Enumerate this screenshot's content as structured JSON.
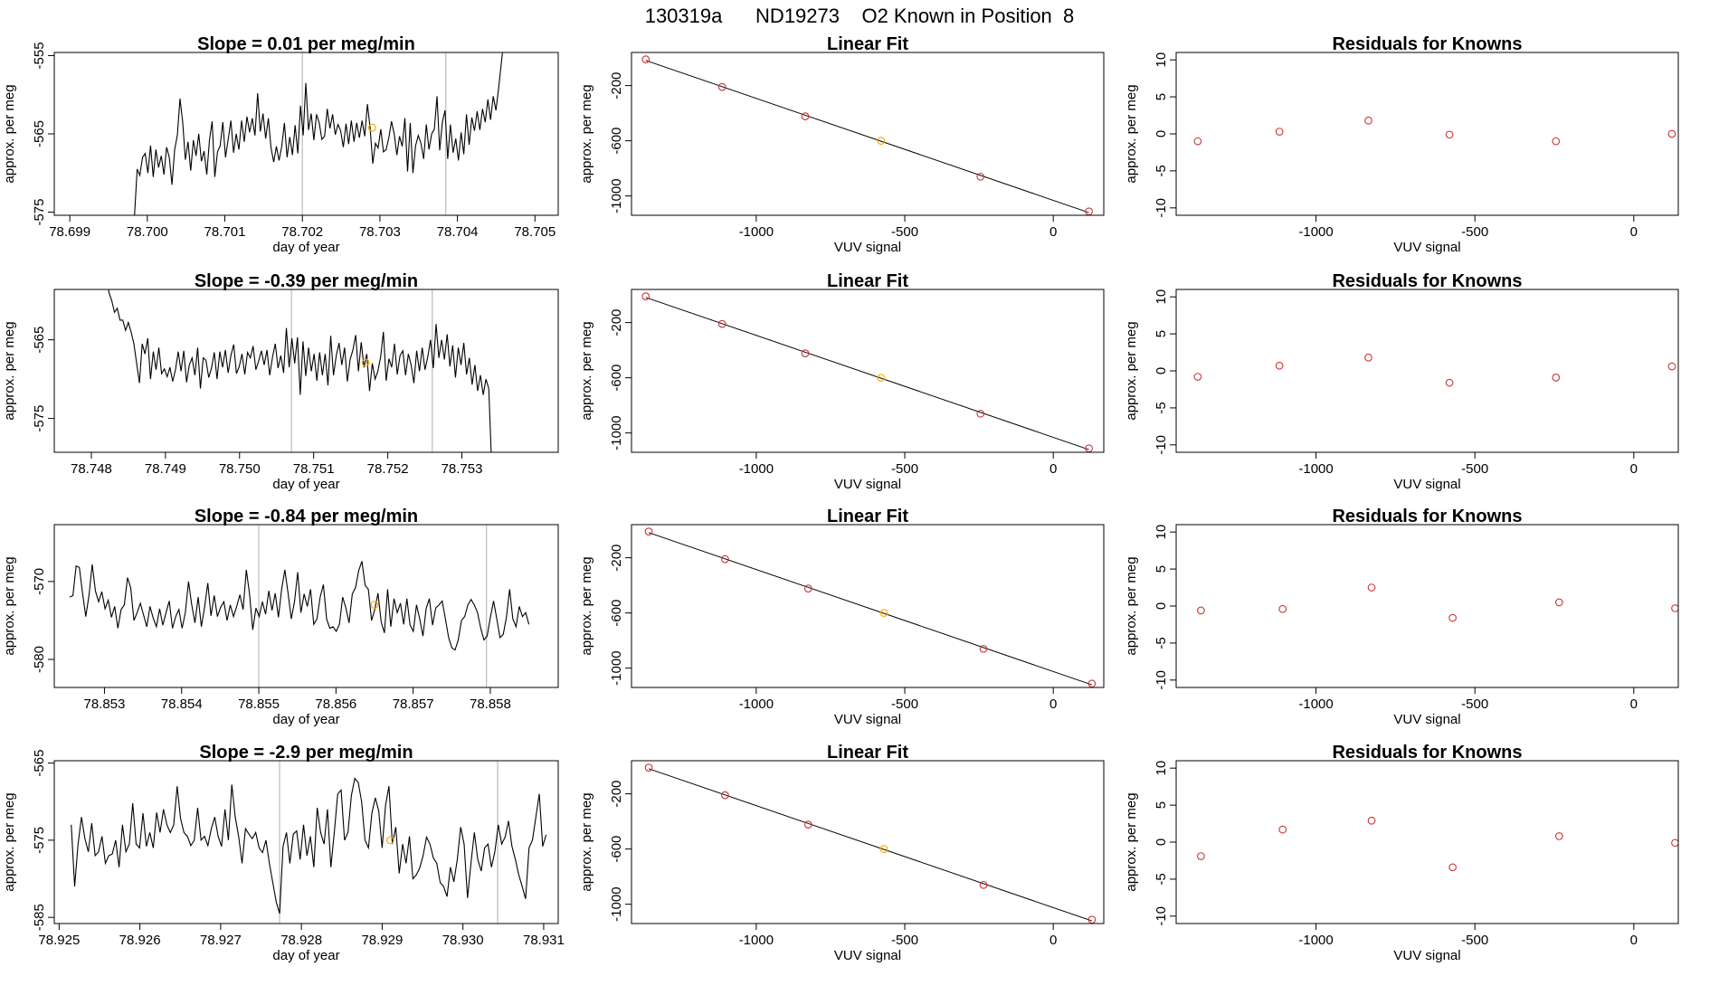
{
  "figure": {
    "run_id": "130319a",
    "tank_id": "ND19273",
    "description": "O2 Known in Position",
    "position": "8"
  },
  "colors": {
    "line": "#000000",
    "point": "#cc3333",
    "highlight": "#ffaa00",
    "vline": "#bbbbbb",
    "axis": "#000000"
  },
  "chart_data": [
    {
      "type": "line",
      "title_prefix": "Slope =",
      "slope": "0.01",
      "title_suffix": "per meg/min",
      "xlabel": "day of year",
      "ylabel": "approx. per meg",
      "xlim": [
        78.6988,
        78.7053
      ],
      "ylim": [
        -575.4,
        -554.6
      ],
      "xticks": [
        "78.699",
        "78.700",
        "78.701",
        "78.702",
        "78.703",
        "78.704",
        "78.705"
      ],
      "yticks": [
        "-575",
        "-565",
        "-555"
      ],
      "vlines": [
        78.702,
        78.70385
      ],
      "highlight": {
        "x": 78.7029,
        "y": -564.2
      },
      "t_start": 78.6998,
      "t_end": 78.7046,
      "series": [
        -576.5,
        -575.5,
        -569.5,
        -570.3,
        -568.0,
        -567.5,
        -570.0,
        -566.5,
        -570.5,
        -567.0,
        -569.3,
        -567.8,
        -570.2,
        -566.7,
        -568.0,
        -571.5,
        -567.0,
        -565.2,
        -560.5,
        -563.5,
        -568.3,
        -566.0,
        -569.7,
        -565.8,
        -567.8,
        -565.0,
        -568.5,
        -567.2,
        -570.2,
        -565.8,
        -563.4,
        -570.5,
        -567.3,
        -566.5,
        -563.5,
        -568.0,
        -565.7,
        -563.3,
        -567.4,
        -565.0,
        -567.0,
        -563.3,
        -566.0,
        -562.8,
        -564.8,
        -563.0,
        -565.2,
        -559.8,
        -564.7,
        -562.4,
        -565.6,
        -563.0,
        -566.8,
        -568.6,
        -566.6,
        -568.4,
        -566.6,
        -563.6,
        -568.0,
        -565.4,
        -567.7,
        -563.9,
        -567.5,
        -561.4,
        -565.2,
        -558.5,
        -564.5,
        -562.4,
        -565.8,
        -562.5,
        -563.6,
        -565.7,
        -565.3,
        -561.8,
        -564.3,
        -562.5,
        -565.1,
        -563.8,
        -564.6,
        -566.7,
        -563.7,
        -566.3,
        -563.3,
        -566.0,
        -563.6,
        -565.5,
        -563.3,
        -565.3,
        -561.2,
        -564.2,
        -568.8,
        -566.2,
        -566.8,
        -564.4,
        -567.3,
        -567.0,
        -565.5,
        -563.4,
        -565.0,
        -567.7,
        -565.3,
        -566.6,
        -563.0,
        -569.8,
        -563.6,
        -570.0,
        -566.5,
        -565.2,
        -566.2,
        -568.2,
        -563.8,
        -567.0,
        -565.0,
        -564.4,
        -560.2,
        -567.1,
        -563.5,
        -562.0,
        -568.2,
        -563.8,
        -567.4,
        -565.6,
        -568.4,
        -564.8,
        -567.6,
        -562.5,
        -566.4,
        -562.9,
        -564.6,
        -562.1,
        -564.5,
        -561.8,
        -563.5,
        -560.6,
        -563.2,
        -560.2,
        -562.0,
        -559.2,
        -556.0,
        -553.0
      ]
    },
    {
      "type": "line",
      "title_prefix": "Slope =",
      "slope": "-0.39",
      "title_suffix": "per meg/min",
      "xlabel": "day of year",
      "ylabel": "approx. per meg",
      "xlim": [
        78.7475,
        78.7543
      ],
      "ylim": [
        -579.3,
        -558.6
      ],
      "xticks": [
        "78.748",
        "78.749",
        "78.750",
        "78.751",
        "78.752",
        "78.753"
      ],
      "yticks": [
        "-575",
        "-565"
      ],
      "vlines": [
        78.7507,
        78.7526
      ],
      "highlight": {
        "x": 78.7517,
        "y": -567.9
      },
      "t_start": 78.7482,
      "t_end": 78.7534,
      "series": [
        -556.0,
        -559.0,
        -560.0,
        -561.5,
        -561.0,
        -562.5,
        -562.5,
        -563.8,
        -562.8,
        -564.0,
        -565.5,
        -568.0,
        -570.5,
        -565.5,
        -566.8,
        -564.8,
        -570.0,
        -566.5,
        -568.8,
        -566.0,
        -569.3,
        -568.7,
        -569.7,
        -568.5,
        -570.3,
        -568.8,
        -566.5,
        -569.0,
        -566.4,
        -570.4,
        -568.2,
        -567.3,
        -569.5,
        -566.0,
        -571.2,
        -567.3,
        -567.6,
        -569.8,
        -568.6,
        -566.6,
        -570.0,
        -566.5,
        -568.5,
        -566.3,
        -569.2,
        -567.0,
        -565.6,
        -569.3,
        -568.4,
        -566.8,
        -569.4,
        -566.6,
        -567.3,
        -565.8,
        -568.8,
        -567.7,
        -566.4,
        -568.2,
        -566.3,
        -569.5,
        -567.2,
        -565.5,
        -568.6,
        -567.0,
        -569.2,
        -563.5,
        -568.5,
        -564.8,
        -568.0,
        -564.7,
        -572.0,
        -565.2,
        -569.6,
        -566.0,
        -569.0,
        -566.8,
        -570.2,
        -566.6,
        -569.5,
        -566.8,
        -570.8,
        -564.5,
        -569.5,
        -567.0,
        -565.4,
        -568.2,
        -566.0,
        -570.3,
        -567.5,
        -566.3,
        -564.4,
        -569.0,
        -565.3,
        -568.5,
        -566.8,
        -571.5,
        -568.0,
        -570.0,
        -569.0,
        -567.2,
        -564.0,
        -570.2,
        -567.4,
        -568.5,
        -565.5,
        -569.4,
        -567.0,
        -566.4,
        -569.5,
        -566.8,
        -568.2,
        -570.5,
        -566.4,
        -569.0,
        -566.0,
        -568.8,
        -567.2,
        -565.0,
        -568.6,
        -563.0,
        -567.3,
        -565.0,
        -567.5,
        -564.3,
        -568.4,
        -565.7,
        -569.8,
        -566.0,
        -568.2,
        -565.4,
        -569.4,
        -567.3,
        -570.7,
        -568.2,
        -571.5,
        -569.5,
        -572.0,
        -570.0,
        -571.2,
        -580.5
      ]
    },
    {
      "type": "line",
      "title_prefix": "Slope =",
      "slope": "-0.84",
      "title_suffix": "per meg/min",
      "xlabel": "day of year",
      "ylabel": "approx. per meg",
      "xlim": [
        78.85235,
        78.85888
      ],
      "ylim": [
        -583.6,
        -562.7
      ],
      "xticks": [
        "78.853",
        "78.854",
        "78.855",
        "78.856",
        "78.857",
        "78.858"
      ],
      "yticks": [
        "-580",
        "-570"
      ],
      "vlines": [
        78.855,
        78.85795
      ],
      "highlight": {
        "x": 78.8565,
        "y": -573.0
      },
      "t_start": 78.85255,
      "t_end": 78.8585,
      "series": [
        -572.0,
        -571.8,
        -568.0,
        -568.2,
        -571.5,
        -574.5,
        -571.8,
        -567.8,
        -571.2,
        -572.6,
        -571.3,
        -573.5,
        -572.4,
        -574.6,
        -573.2,
        -576.0,
        -573.6,
        -573.0,
        -569.5,
        -570.8,
        -575.0,
        -574.0,
        -572.8,
        -574.3,
        -575.8,
        -573.2,
        -574.7,
        -575.8,
        -573.5,
        -575.6,
        -574.0,
        -572.5,
        -576.0,
        -574.5,
        -573.6,
        -576.0,
        -574.0,
        -570.0,
        -573.0,
        -575.3,
        -572.0,
        -575.8,
        -573.3,
        -570.2,
        -574.4,
        -571.8,
        -574.5,
        -573.3,
        -572.6,
        -575.0,
        -573.0,
        -574.5,
        -573.2,
        -571.7,
        -573.6,
        -568.5,
        -571.6,
        -576.2,
        -573.4,
        -574.5,
        -572.6,
        -574.2,
        -571.2,
        -573.7,
        -571.5,
        -574.6,
        -571.0,
        -568.5,
        -571.5,
        -574.8,
        -572.6,
        -568.8,
        -574.0,
        -571.6,
        -573.2,
        -571.0,
        -575.5,
        -574.8,
        -572.0,
        -570.4,
        -574.8,
        -576.0,
        -575.8,
        -576.4,
        -575.5,
        -572.0,
        -573.4,
        -575.3,
        -571.6,
        -570.8,
        -568.6,
        -567.4,
        -570.5,
        -571.0,
        -575.0,
        -573.6,
        -571.5,
        -575.2,
        -576.6,
        -571.0,
        -575.8,
        -572.2,
        -574.0,
        -572.8,
        -575.5,
        -572.2,
        -575.6,
        -576.4,
        -573.0,
        -574.8,
        -577.0,
        -573.5,
        -572.2,
        -575.6,
        -573.4,
        -573.0,
        -572.5,
        -574.8,
        -577.2,
        -578.5,
        -578.8,
        -577.5,
        -575.0,
        -574.5,
        -573.0,
        -572.3,
        -573.0,
        -574.0,
        -576.0,
        -577.5,
        -577.0,
        -574.6,
        -572.5,
        -574.8,
        -577.2,
        -576.8,
        -574.6,
        -571.0,
        -574.8,
        -575.8,
        -573.2,
        -574.5,
        -574.0,
        -575.5
      ]
    },
    {
      "type": "line",
      "title_prefix": "Slope =",
      "slope": "-2.9",
      "title_suffix": "per meg/min",
      "xlabel": "day of year",
      "ylabel": "approx. per meg",
      "xlim": [
        78.92494,
        78.93118
      ],
      "ylim": [
        -585.8,
        -564.7
      ],
      "xticks": [
        "78.925",
        "78.926",
        "78.927",
        "78.928",
        "78.929",
        "78.930",
        "78.931"
      ],
      "yticks": [
        "-585",
        "-575",
        "-565"
      ],
      "vlines": [
        78.92773,
        78.93043
      ],
      "highlight": {
        "x": 78.9291,
        "y": -575.0
      },
      "t_start": 78.92515,
      "t_end": 78.93103,
      "series": [
        -573.0,
        -581.0,
        -575.5,
        -572.0,
        -574.8,
        -576.5,
        -572.8,
        -577.0,
        -576.5,
        -574.5,
        -578.0,
        -577.0,
        -576.8,
        -575.0,
        -578.5,
        -573.0,
        -576.5,
        -575.5,
        -570.2,
        -575.5,
        -576.0,
        -571.5,
        -575.8,
        -574.0,
        -576.0,
        -571.4,
        -574.0,
        -571.0,
        -573.0,
        -574.0,
        -573.0,
        -568.0,
        -572.2,
        -574.0,
        -574.5,
        -575.7,
        -575.0,
        -570.8,
        -575.0,
        -574.5,
        -575.7,
        -573.5,
        -572.0,
        -574.5,
        -575.8,
        -571.0,
        -575.0,
        -567.8,
        -572.0,
        -574.5,
        -578.0,
        -573.5,
        -574.2,
        -574.8,
        -574.0,
        -576.0,
        -576.6,
        -575.0,
        -578.0,
        -580.5,
        -583.0,
        -584.5,
        -575.8,
        -574.0,
        -578.0,
        -574.2,
        -573.8,
        -577.5,
        -573.0,
        -577.0,
        -574.5,
        -578.5,
        -570.8,
        -574.0,
        -575.5,
        -571.0,
        -578.5,
        -574.0,
        -569.0,
        -568.5,
        -575.0,
        -574.0,
        -569.2,
        -567.0,
        -567.5,
        -570.0,
        -575.0,
        -576.0,
        -571.5,
        -569.5,
        -571.2,
        -576.0,
        -570.5,
        -568.0,
        -575.5,
        -573.3,
        -579.3,
        -575.5,
        -578.0,
        -574.5,
        -580.0,
        -579.5,
        -578.6,
        -577.0,
        -574.6,
        -575.5,
        -577.3,
        -578.0,
        -580.5,
        -581.0,
        -582.3,
        -578.5,
        -580.4,
        -577.5,
        -573.3,
        -575.5,
        -582.5,
        -578.0,
        -574.0,
        -577.5,
        -579.0,
        -576.0,
        -575.5,
        -578.5,
        -576.5,
        -573.0,
        -575.5,
        -574.6,
        -572.5,
        -575.8,
        -577.5,
        -579.5,
        -581.0,
        -582.6,
        -576.0,
        -575.0,
        -572.0,
        -569.0,
        -575.8,
        -574.3
      ]
    },
    {
      "type": "scatter",
      "title": "Linear Fit",
      "xlabel": "VUV signal",
      "ylabel": "approx. per meg",
      "xlim": [
        -1420,
        170
      ],
      "ylim": [
        -1140,
        40
      ],
      "xticks": [
        -1000,
        -500,
        0
      ],
      "yticks": [
        -200,
        -600,
        -1000
      ],
      "x": [
        -1372,
        -1115,
        -835,
        -580,
        -245,
        120
      ],
      "y": [
        -10,
        -210,
        -423,
        -600,
        -860,
        -1112
      ],
      "highlight_index": 3
    },
    {
      "type": "scatter",
      "title": "Residuals for Knowns",
      "xlabel": "VUV signal",
      "ylabel": "approx. per meg",
      "xlim": [
        -1440,
        140
      ],
      "ylim": [
        -11,
        11
      ],
      "xticks": [
        -1000,
        -500,
        0
      ],
      "yticks": [
        10,
        5,
        0,
        -5,
        -10
      ],
      "x": [
        -1372,
        -1115,
        -835,
        -580,
        -245,
        120
      ],
      "y": [
        -1.0,
        0.3,
        1.8,
        -0.1,
        -1.0,
        0.0
      ]
    },
    {
      "type": "scatter",
      "title": "Linear Fit",
      "xlabel": "VUV signal",
      "ylabel": "approx. per meg",
      "xlim": [
        -1420,
        170
      ],
      "ylim": [
        -1140,
        40
      ],
      "xticks": [
        -1000,
        -500,
        0
      ],
      "yticks": [
        -200,
        -600,
        -1000
      ],
      "x": [
        -1372,
        -1115,
        -835,
        -580,
        -245,
        120
      ],
      "y": [
        -10,
        -210,
        -423,
        -600,
        -860,
        -1112
      ],
      "highlight_index": 3
    },
    {
      "type": "scatter",
      "title": "Residuals for Knowns",
      "xlabel": "VUV signal",
      "ylabel": "approx. per meg",
      "xlim": [
        -1440,
        140
      ],
      "ylim": [
        -11,
        11
      ],
      "xticks": [
        -1000,
        -500,
        0
      ],
      "yticks": [
        10,
        5,
        0,
        -5,
        -10
      ],
      "x": [
        -1372,
        -1115,
        -835,
        -580,
        -245,
        120
      ],
      "y": [
        -0.8,
        0.7,
        1.8,
        -1.6,
        -0.9,
        0.6
      ]
    },
    {
      "type": "scatter",
      "title": "Linear Fit",
      "xlabel": "VUV signal",
      "ylabel": "approx. per meg",
      "xlim": [
        -1420,
        170
      ],
      "ylim": [
        -1140,
        40
      ],
      "xticks": [
        -1000,
        -500,
        0
      ],
      "yticks": [
        -200,
        -600,
        -1000
      ],
      "x": [
        -1362,
        -1105,
        -825,
        -570,
        -235,
        130
      ],
      "y": [
        -10,
        -210,
        -423,
        -600,
        -860,
        -1112
      ],
      "highlight_index": 3
    },
    {
      "type": "scatter",
      "title": "Residuals for Knowns",
      "xlabel": "VUV signal",
      "ylabel": "approx. per meg",
      "xlim": [
        -1440,
        140
      ],
      "ylim": [
        -11,
        11
      ],
      "xticks": [
        -1000,
        -500,
        0
      ],
      "yticks": [
        10,
        5,
        0,
        -5,
        -10
      ],
      "x": [
        -1362,
        -1105,
        -825,
        -570,
        -235,
        130
      ],
      "y": [
        -0.6,
        -0.4,
        2.5,
        -1.6,
        0.5,
        -0.3
      ]
    },
    {
      "type": "scatter",
      "title": "Linear Fit",
      "xlabel": "VUV signal",
      "ylabel": "approx. per meg",
      "xlim": [
        -1420,
        170
      ],
      "ylim": [
        -1140,
        40
      ],
      "xticks": [
        -1000,
        -500,
        0
      ],
      "yticks": [
        -200,
        -600,
        -1000
      ],
      "x": [
        -1362,
        -1105,
        -825,
        -570,
        -235,
        130
      ],
      "y": [
        -10,
        -210,
        -423,
        -600,
        -860,
        -1112
      ],
      "highlight_index": 3
    },
    {
      "type": "scatter",
      "title": "Residuals for Knowns",
      "xlabel": "VUV signal",
      "ylabel": "approx. per meg",
      "xlim": [
        -1440,
        140
      ],
      "ylim": [
        -11,
        11
      ],
      "xticks": [
        -1000,
        -500,
        0
      ],
      "yticks": [
        10,
        5,
        0,
        -5,
        -10
      ],
      "x": [
        -1362,
        -1105,
        -825,
        -570,
        -235,
        130
      ],
      "y": [
        -1.9,
        1.7,
        2.9,
        -3.4,
        0.8,
        -0.1
      ]
    }
  ]
}
